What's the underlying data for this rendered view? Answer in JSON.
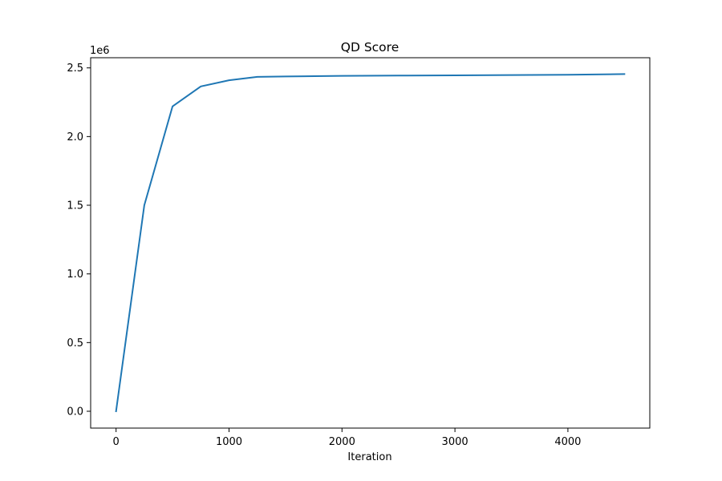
{
  "chart_data": {
    "type": "line",
    "title": "QD Score",
    "xlabel": "Iteration",
    "ylabel": "",
    "y_offset_label": "1e6",
    "xlim": [
      -225,
      4725
    ],
    "ylim": [
      -0.1226,
      2.5741
    ],
    "x_ticks": [
      0,
      1000,
      2000,
      3000,
      4000
    ],
    "x_tick_labels": [
      "0",
      "1000",
      "2000",
      "3000",
      "4000"
    ],
    "y_ticks": [
      0.0,
      0.5,
      1.0,
      1.5,
      2.0,
      2.5
    ],
    "y_tick_labels": [
      "0.0",
      "0.5",
      "1.0",
      "1.5",
      "2.0",
      "2.5"
    ],
    "grid": false,
    "series": [
      {
        "color": "#1f77b4",
        "x": [
          0,
          250,
          500,
          750,
          1000,
          1250,
          1500,
          2000,
          2500,
          3000,
          3500,
          4000,
          4500
        ],
        "y": [
          0.0,
          1.5,
          2.22,
          2.365,
          2.41,
          2.435,
          2.438,
          2.442,
          2.444,
          2.446,
          2.448,
          2.45,
          2.455
        ]
      }
    ]
  }
}
